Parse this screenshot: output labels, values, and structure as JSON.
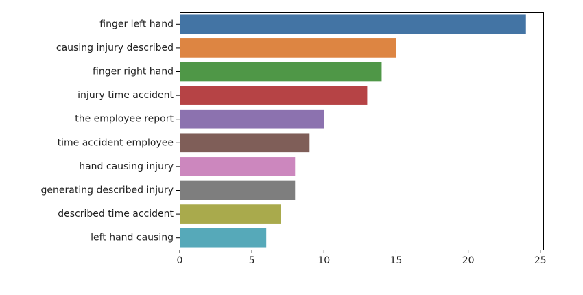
{
  "chart_data": {
    "type": "bar",
    "orientation": "horizontal",
    "title": "",
    "xlabel": "",
    "ylabel": "",
    "categories": [
      "finger left hand",
      "causing injury described",
      "finger right hand",
      "injury time accident",
      "the employee report",
      "time accident employee",
      "hand causing injury",
      "generating described injury",
      "described time accident",
      "left hand causing"
    ],
    "values": [
      24,
      15,
      14,
      13,
      10,
      9,
      8,
      8,
      7,
      6
    ],
    "colors": [
      "#4374a4",
      "#dd8542",
      "#4f9747",
      "#b64345",
      "#8c72af",
      "#7f5e58",
      "#cc87be",
      "#7e7e7e",
      "#a9aa4c",
      "#56a9b9"
    ],
    "xlim": [
      0,
      25.2
    ],
    "xticks": [
      0,
      5,
      10,
      15,
      20,
      25
    ],
    "grid": false,
    "legend": "none"
  }
}
